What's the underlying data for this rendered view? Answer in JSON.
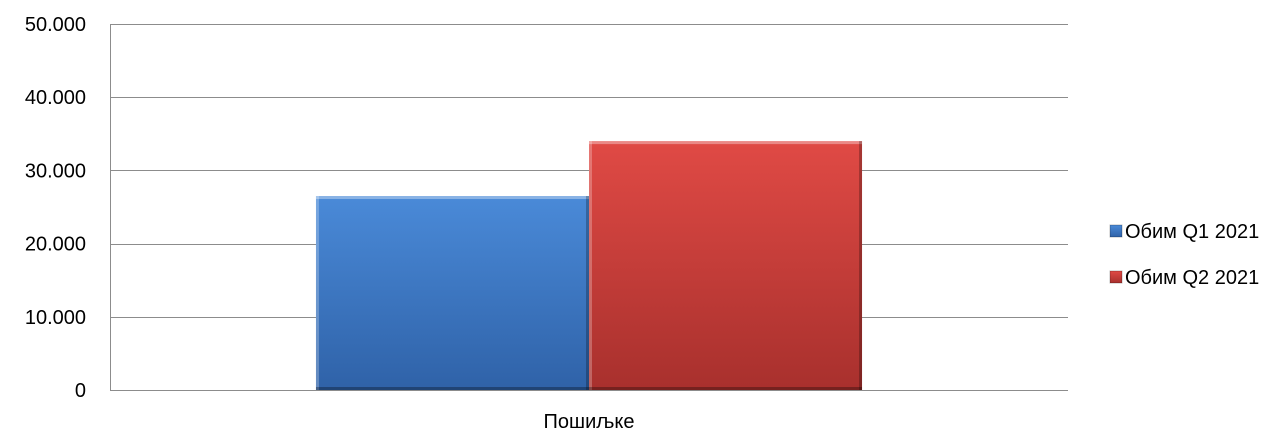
{
  "chart_data": {
    "type": "bar",
    "categories": [
      "Пошиљке"
    ],
    "series": [
      {
        "name": "Обим Q1 2021",
        "values": [
          26500
        ],
        "color": "#3d7cc9"
      },
      {
        "name": "Обим Q2 2021",
        "values": [
          34000
        ],
        "color": "#cf3b37"
      }
    ],
    "ylim": [
      0,
      50000
    ],
    "yticks": [
      0,
      10000,
      20000,
      30000,
      40000,
      50000
    ],
    "ytick_labels": [
      "0",
      "10.000",
      "20.000",
      "30.000",
      "40.000",
      "50.000"
    ],
    "title": "",
    "xlabel": "",
    "ylabel": "",
    "grid": true,
    "legend_position": "right"
  }
}
